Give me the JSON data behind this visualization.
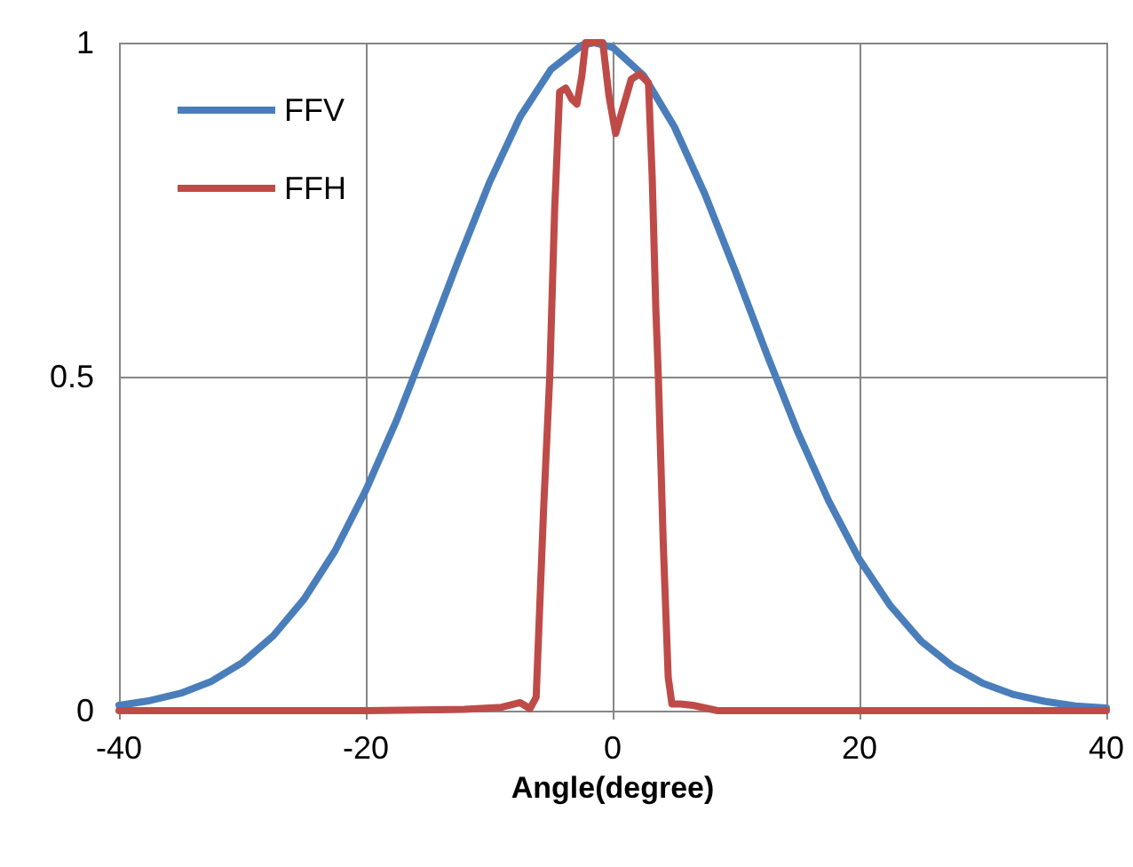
{
  "chart_data": {
    "type": "line",
    "xlabel": "Angle(degree)",
    "xlim": [
      -40,
      40
    ],
    "xticks": [
      -40,
      -20,
      0,
      20,
      40
    ],
    "ylim": [
      0,
      1
    ],
    "yticks": [
      0,
      0.5,
      1
    ],
    "grid": true,
    "legend": "top left",
    "marker": "none",
    "line_style": "solid",
    "series": [
      {
        "name": "FFV",
        "color": "#4a7ebb",
        "x": [
          -40,
          -37.5,
          -35,
          -32.5,
          -30,
          -27.5,
          -25,
          -22.5,
          -20,
          -17.5,
          -15,
          -12.5,
          -10,
          -7.5,
          -5,
          -2.5,
          -1.5,
          0,
          2.5,
          5,
          7.5,
          10,
          12.5,
          15,
          17.5,
          20,
          22.5,
          25,
          27.5,
          30,
          32.5,
          35,
          37.5,
          40
        ],
        "values": [
          0.008,
          0.015,
          0.026,
          0.044,
          0.072,
          0.112,
          0.167,
          0.239,
          0.33,
          0.435,
          0.553,
          0.674,
          0.79,
          0.889,
          0.96,
          0.996,
          1.0,
          0.993,
          0.951,
          0.874,
          0.772,
          0.655,
          0.533,
          0.417,
          0.314,
          0.226,
          0.157,
          0.104,
          0.067,
          0.041,
          0.024,
          0.014,
          0.007,
          0.004
        ]
      },
      {
        "name": "FFH",
        "color": "#be4b48",
        "x": [
          -40,
          -30,
          -20,
          -12,
          -9,
          -7.5,
          -6.7,
          -6.2,
          -5.6,
          -5.1,
          -4.7,
          -4.3,
          -3.8,
          -3.3,
          -2.9,
          -2.5,
          -2.2,
          -1.5,
          -0.8,
          -0.3,
          0.24,
          0.8,
          1.5,
          2.16,
          2.9,
          3.2,
          3.5,
          3.7,
          4.1,
          4.5,
          4.8,
          5.5,
          6.5,
          8.5,
          20,
          40
        ],
        "values": [
          0,
          0,
          0,
          0.002,
          0.005,
          0.012,
          0.003,
          0.02,
          0.3,
          0.5,
          0.75,
          0.926,
          0.932,
          0.915,
          0.908,
          0.95,
          1,
          1,
          1,
          0.92,
          0.864,
          0.9,
          0.945,
          0.953,
          0.94,
          0.8,
          0.6,
          0.5,
          0.25,
          0.05,
          0.01,
          0.01,
          0.008,
          0,
          0,
          0
        ]
      }
    ]
  }
}
